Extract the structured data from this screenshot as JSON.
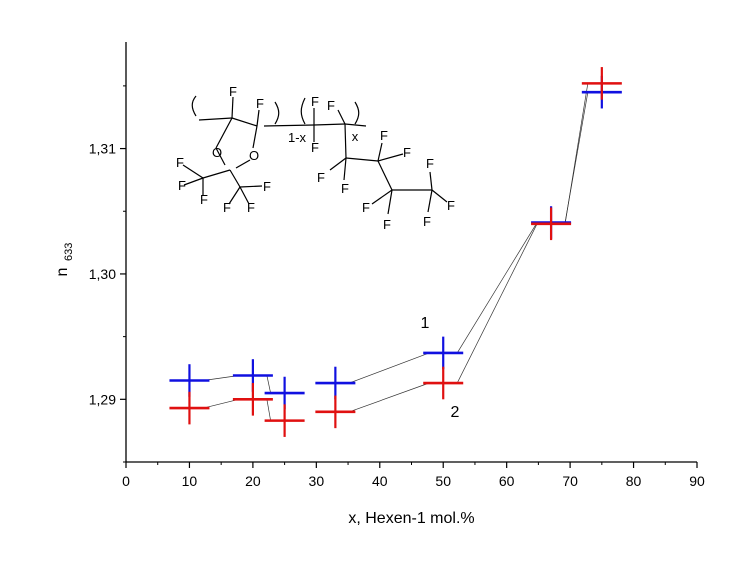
{
  "chart_data": {
    "type": "scatter",
    "xlabel": "x, Hexen-1 mol.%",
    "ylabel": "n",
    "ylabel_sub": "633",
    "xlim": [
      0,
      90
    ],
    "ylim": [
      1.285,
      1.3185
    ],
    "x_ticks": [
      0,
      10,
      20,
      30,
      40,
      50,
      60,
      70,
      80,
      90
    ],
    "x_tick_labels": [
      "0",
      "10",
      "20",
      "30",
      "40",
      "50",
      "60",
      "70",
      "80",
      "90"
    ],
    "y_ticks": [
      1.29,
      1.3,
      1.31
    ],
    "y_tick_labels": [
      "1,29",
      "1,30",
      "1,31"
    ],
    "grid": false,
    "series": [
      {
        "name": "1",
        "color": "#1010e0",
        "marker": "plus-error-bar",
        "x": [
          10,
          20,
          25,
          33,
          50,
          67,
          75
        ],
        "y": [
          1.2915,
          1.2919,
          1.2905,
          1.2913,
          1.2937,
          1.3041,
          1.3145
        ],
        "yerr": [
          0.0013,
          0.0013,
          0.0013,
          0.0013,
          0.0013,
          0.0013,
          0.0013
        ]
      },
      {
        "name": "2",
        "color": "#e01010",
        "marker": "plus-error-bar",
        "x": [
          10,
          20,
          25,
          33,
          50,
          67,
          75
        ],
        "y": [
          1.2893,
          1.29,
          1.2883,
          1.289,
          1.2913,
          1.304,
          1.3152
        ],
        "yerr": [
          0.0013,
          0.0013,
          0.0013,
          0.0013,
          0.0013,
          0.0013,
          0.0013
        ]
      }
    ],
    "annotations": [
      "1",
      "2"
    ]
  },
  "structure": {
    "subscript_1x": "1-x",
    "subscript_x": "x",
    "atom_F": "F",
    "atom_O": "O"
  }
}
